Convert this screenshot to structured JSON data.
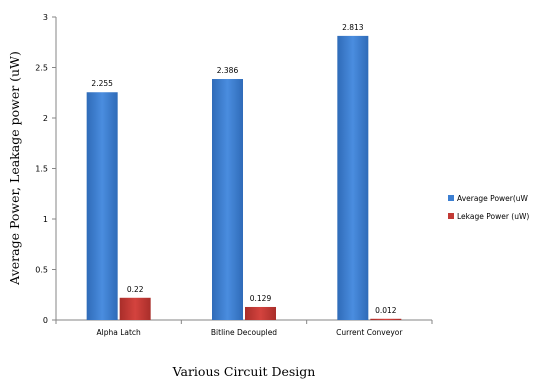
{
  "chart_data": {
    "type": "bar",
    "categories": [
      "Alpha Latch",
      "Bitline Decoupled",
      "Current Conveyor"
    ],
    "series": [
      {
        "name": "Average Power(uW",
        "values": [
          2.255,
          2.386,
          2.813
        ],
        "labels": [
          "2.255",
          "2.386",
          "2.813"
        ],
        "color": "#3C7FD2"
      },
      {
        "name": "Lekage Power (uW)",
        "values": [
          0.22,
          0.129,
          0.012
        ],
        "labels": [
          "0.22",
          "0.129",
          "0.012"
        ],
        "color": "#C23A35"
      }
    ],
    "xlabel": "Various Circuit Design",
    "ylabel": "Average Power, Leakage power (uW)",
    "ylim": [
      0,
      3
    ],
    "yticks": [
      0,
      0.5,
      1,
      1.5,
      2,
      2.5,
      3
    ],
    "ytick_labels": [
      "0",
      "0.5",
      "1",
      "1.5",
      "2",
      "2.5",
      "3"
    ],
    "grid": false,
    "legend_position": "right"
  }
}
